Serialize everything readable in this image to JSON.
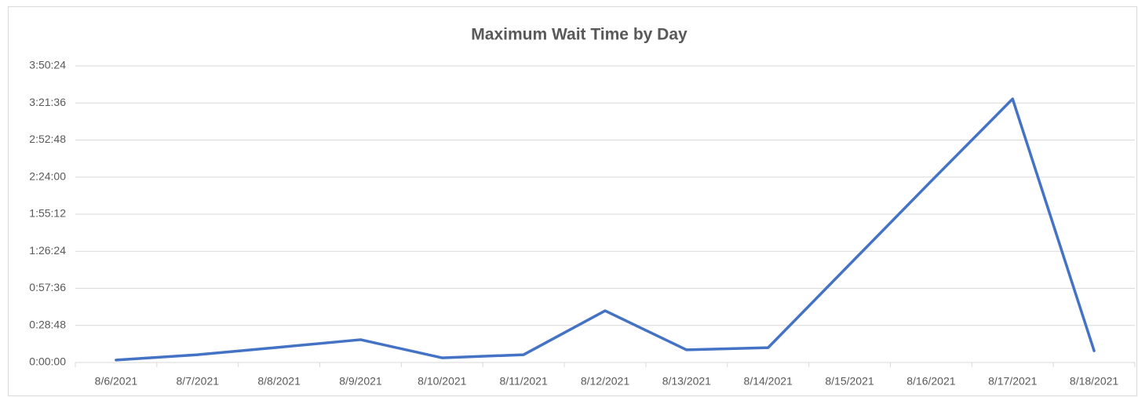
{
  "chart_data": {
    "type": "line",
    "title": "Maximum Wait Time by Day",
    "categories": [
      "8/6/2021",
      "8/7/2021",
      "8/8/2021",
      "8/9/2021",
      "8/10/2021",
      "8/11/2021",
      "8/12/2021",
      "8/13/2021",
      "8/14/2021",
      "8/15/2021",
      "8/16/2021",
      "8/17/2021",
      "8/18/2021"
    ],
    "series": [
      {
        "name": "Maximum Wait Time",
        "color": "#4472c4",
        "values": [
          0.0013,
          0.0042,
          0.0082,
          0.0123,
          0.0025,
          0.0042,
          0.0279,
          0.0068,
          0.008,
          0.0529,
          0.0978,
          0.1422,
          0.0063
        ]
      }
    ],
    "ylim": [
      0,
      0.16
    ],
    "yticks": [
      {
        "value": 0,
        "label": "0:00:00"
      },
      {
        "value": 0.02,
        "label": "0:28:48"
      },
      {
        "value": 0.04,
        "label": "0:57:36"
      },
      {
        "value": 0.06,
        "label": "1:26:24"
      },
      {
        "value": 0.08,
        "label": "1:55:12"
      },
      {
        "value": 0.1,
        "label": "2:24:00"
      },
      {
        "value": 0.12,
        "label": "2:52:48"
      },
      {
        "value": 0.14,
        "label": "3:21:36"
      },
      {
        "value": 0.16,
        "label": "3:50:24"
      }
    ],
    "grid": true
  }
}
